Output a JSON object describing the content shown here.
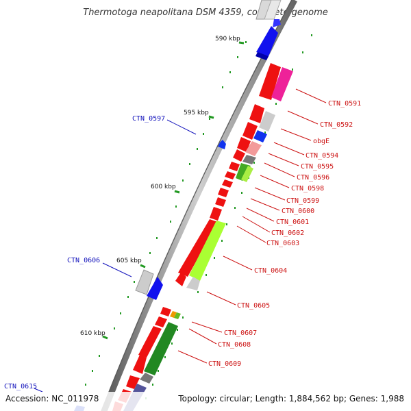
{
  "title": "Thermotoga neapolitana DSM 4359, complete genome",
  "accession": "Accession: NC_011978",
  "summary": "Topology: circular; Length: 1,884,562 bp; Genes: 1,988",
  "scale_labels": [
    "590 kbp",
    "595 kbp",
    "600 kbp",
    "605 kbp",
    "610 kbp"
  ],
  "left_labels": [
    "CTN_0597",
    "CTN_0606",
    "CTN_0615"
  ],
  "right_labels": [
    "CTN_0591",
    "CTN_0592",
    "obgE",
    "CTN_0594",
    "CTN_0595",
    "CTN_0596",
    "CTN_0598",
    "CTN_0599",
    "CTN_0600",
    "CTN_0601",
    "CTN_0602",
    "CTN_0603",
    "CTN_0604",
    "CTN_0605",
    "CTN_0607",
    "CTN_0608",
    "CTN_0609"
  ],
  "colors": {
    "forward_gene": "#ee1111",
    "reverse_label": "#1111bb",
    "forward_label": "#cc1111",
    "backbone": "#888888",
    "tick": "#22aa22"
  }
}
